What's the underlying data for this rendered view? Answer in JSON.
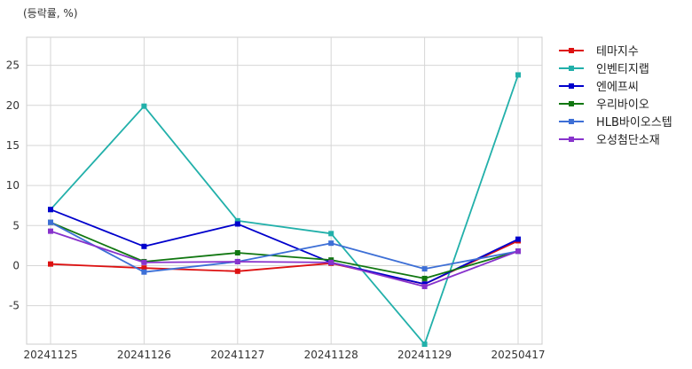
{
  "chart_data": {
    "type": "line",
    "unit_label": "(등락률, %)",
    "categories": [
      "20241125",
      "20241126",
      "20241127",
      "20241128",
      "20241129",
      "20250417"
    ],
    "ylim": [
      -9.8,
      28.5
    ],
    "yticks": [
      25,
      20,
      15,
      10,
      5,
      0,
      -5
    ],
    "grid": true,
    "legend_position": "right",
    "series": [
      {
        "name": "테마지수",
        "color": "#dd1111",
        "values": [
          0.2,
          -0.3,
          -0.7,
          0.3,
          -2.3,
          3.1
        ]
      },
      {
        "name": "인벤티지랩",
        "color": "#22b0aa",
        "values": [
          7.0,
          19.9,
          5.6,
          4.0,
          -9.8,
          23.8
        ]
      },
      {
        "name": "엔에프씨",
        "color": "#0000cc",
        "values": [
          7.0,
          2.4,
          5.2,
          0.4,
          -2.3,
          3.3
        ]
      },
      {
        "name": "우리바이오",
        "color": "#117711",
        "values": [
          5.4,
          0.5,
          1.6,
          0.7,
          -1.6,
          1.8
        ]
      },
      {
        "name": "HLB바이오스텝",
        "color": "#3d6fd6",
        "values": [
          5.4,
          -0.8,
          0.5,
          2.8,
          -0.4,
          1.8
        ]
      },
      {
        "name": "오성첨단소재",
        "color": "#8833cc",
        "values": [
          4.3,
          0.4,
          0.5,
          0.4,
          -2.6,
          1.8
        ]
      }
    ]
  }
}
